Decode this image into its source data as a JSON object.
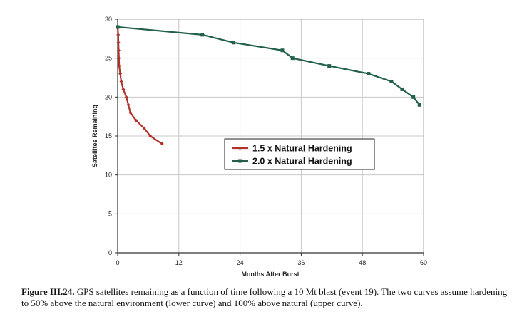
{
  "chart_data": {
    "type": "line",
    "title": "",
    "xlabel": "Months After Burst",
    "ylabel": "Satellites Remaining",
    "xlim": [
      0,
      60
    ],
    "ylim": [
      0,
      30
    ],
    "xticks": [
      0,
      12,
      24,
      36,
      48,
      60
    ],
    "yticks": [
      0,
      5,
      10,
      15,
      20,
      25,
      30
    ],
    "grid": true,
    "legend_position": "center",
    "series": [
      {
        "name": "1.5 x Natural Hardening",
        "color": "#b0322a",
        "marker": "diamond",
        "x": [
          0,
          0.1,
          0.15,
          0.2,
          0.25,
          0.3,
          0.5,
          0.7,
          1.1,
          1.7,
          2.1,
          2.5,
          3.6,
          5.2,
          6.4,
          8.7
        ],
        "y": [
          29,
          28,
          27,
          26,
          25,
          24,
          23,
          22,
          21,
          20,
          19,
          18,
          17,
          16,
          15,
          14
        ]
      },
      {
        "name": "2.0 x Natural Hardening",
        "color": "#22604a",
        "marker": "square",
        "x": [
          0,
          16.6,
          22.7,
          32.3,
          34.3,
          41.5,
          49.2,
          53.7,
          55.8,
          58.0,
          59.2
        ],
        "y": [
          29,
          28,
          27,
          26,
          25,
          24,
          23,
          22,
          21,
          20,
          19
        ]
      }
    ]
  },
  "caption": {
    "label": "Figure III.24.",
    "text": " GPS satellites remaining as a function of time following a 10 Mt blast (event 19).  The two curves assume hardening to 50% above the natural environment (lower curve) and 100% above natural (upper curve)."
  }
}
